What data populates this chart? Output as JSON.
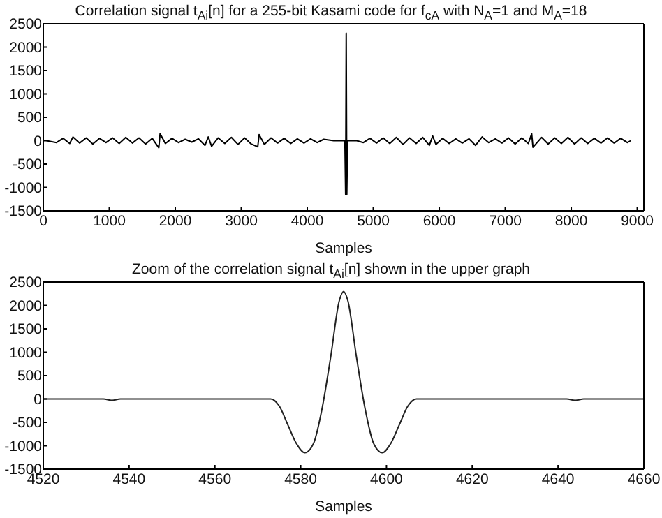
{
  "chart_data": [
    {
      "type": "line",
      "title": "Correlation signal t$_{Ai}$[n] for a 255-bit Kasami code for f$_{cA}$ with N$_{A}$=1 and M$_{A}$=18",
      "xlabel": "Samples",
      "x": [
        50,
        200,
        300,
        400,
        450,
        550,
        650,
        750,
        850,
        950,
        1050,
        1150,
        1250,
        1350,
        1450,
        1550,
        1650,
        1750,
        1770,
        1850,
        1950,
        2050,
        2150,
        2250,
        2350,
        2450,
        2500,
        2550,
        2650,
        2750,
        2850,
        2950,
        3050,
        3150,
        3250,
        3270,
        3350,
        3450,
        3550,
        3650,
        3750,
        3850,
        3950,
        4050,
        4150,
        4250,
        4400,
        4570,
        4581,
        4590,
        4599,
        4610,
        4750,
        4850,
        4950,
        5050,
        5150,
        5250,
        5350,
        5450,
        5550,
        5650,
        5750,
        5850,
        5900,
        5950,
        6050,
        6150,
        6250,
        6350,
        6450,
        6550,
        6650,
        6750,
        6850,
        6950,
        7050,
        7150,
        7250,
        7350,
        7400,
        7420,
        7550,
        7650,
        7750,
        7850,
        7950,
        8050,
        8150,
        8250,
        8350,
        8450,
        8550,
        8650,
        8750,
        8850,
        8900
      ],
      "series": [
        {
          "color": "#000000",
          "values": [
            0,
            -40,
            50,
            -60,
            80,
            -50,
            60,
            -70,
            50,
            -40,
            60,
            -60,
            70,
            -50,
            60,
            -70,
            50,
            -150,
            150,
            -60,
            50,
            -40,
            30,
            -30,
            40,
            -100,
            80,
            -120,
            60,
            -60,
            70,
            -80,
            60,
            -70,
            -130,
            130,
            -80,
            60,
            -50,
            50,
            -60,
            40,
            -50,
            40,
            -40,
            30,
            0,
            0,
            -1150,
            2300,
            -1150,
            0,
            0,
            -40,
            50,
            -50,
            60,
            -60,
            70,
            -80,
            60,
            -60,
            70,
            -100,
            100,
            -80,
            50,
            -60,
            40,
            -50,
            40,
            -100,
            80,
            -40,
            40,
            -50,
            60,
            -70,
            60,
            -60,
            150,
            -140,
            70,
            -70,
            60,
            -60,
            70,
            -70,
            60,
            -60,
            50,
            -50,
            60,
            -50,
            50,
            -40,
            0
          ]
        }
      ],
      "xlim": [
        0,
        9100
      ],
      "xticks": [
        0,
        1000,
        2000,
        3000,
        4000,
        5000,
        6000,
        7000,
        8000,
        9000
      ],
      "ylim": [
        -1500,
        2500
      ],
      "yticks": [
        -1500,
        -1000,
        -500,
        0,
        500,
        1000,
        1500,
        2000,
        2500
      ],
      "grid": false,
      "legend": false,
      "marker": "none",
      "line_style": "solid"
    },
    {
      "type": "line",
      "title": "Zoom of the correlation signal t$_{Ai}$[n] shown in the upper graph",
      "xlabel": "Samples",
      "x": [
        4520,
        4534,
        4536,
        4538,
        4573,
        4575,
        4577,
        4579,
        4581,
        4583,
        4585,
        4587,
        4589,
        4590,
        4591,
        4593,
        4595,
        4597,
        4599,
        4601,
        4603,
        4605,
        4607,
        4642,
        4644,
        4646,
        4660
      ],
      "series": [
        {
          "color": "#222222",
          "values": [
            0,
            0,
            -30,
            0,
            0,
            -150,
            -550,
            -950,
            -1150,
            -950,
            -200,
            900,
            2100,
            2300,
            2100,
            900,
            -200,
            -950,
            -1150,
            -950,
            -550,
            -150,
            0,
            0,
            -30,
            0,
            0
          ]
        }
      ],
      "xlim": [
        4520,
        4660
      ],
      "xticks": [
        4520,
        4540,
        4560,
        4580,
        4600,
        4620,
        4640,
        4660
      ],
      "ylim": [
        -1500,
        2500
      ],
      "yticks": [
        -1500,
        -1000,
        -500,
        0,
        500,
        1000,
        1500,
        2000,
        2500
      ],
      "grid": false,
      "legend": false,
      "marker": "none",
      "line_style": "solid"
    }
  ]
}
